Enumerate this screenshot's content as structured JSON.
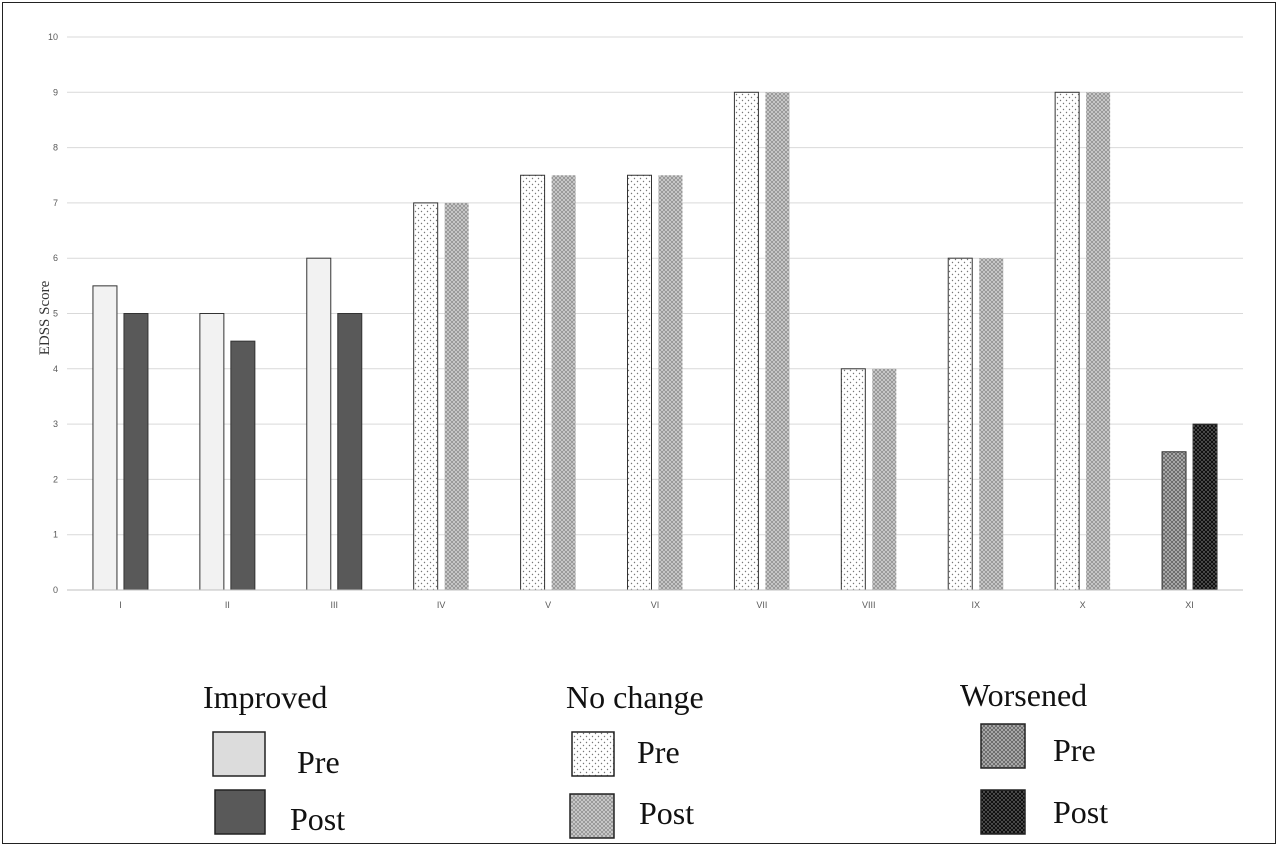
{
  "chart_data": {
    "type": "bar",
    "ylabel": "EDSS Score",
    "xlabel": "",
    "ylim": [
      0,
      10
    ],
    "yticks": [
      0,
      1,
      2,
      3,
      4,
      5,
      6,
      7,
      8,
      9,
      10
    ],
    "grid": true,
    "categories": [
      "I",
      "II",
      "III",
      "IV",
      "V",
      "VI",
      "VII",
      "VIII",
      "IX",
      "X",
      "XI"
    ],
    "series": [
      {
        "name": "Pre",
        "values": [
          5.5,
          5,
          6,
          7,
          7.5,
          7.5,
          9,
          4,
          6,
          9,
          2.5
        ]
      },
      {
        "name": "Post",
        "values": [
          5,
          4.5,
          5,
          7,
          7.5,
          7.5,
          9,
          4,
          6,
          9,
          3
        ]
      }
    ],
    "groups": [
      "Improved",
      "Improved",
      "Improved",
      "No change",
      "No change",
      "No change",
      "No change",
      "No change",
      "No change",
      "No change",
      "Worsened"
    ],
    "legend": {
      "placement": "bottom",
      "groups": [
        {
          "title": "Improved",
          "items": [
            "Pre",
            "Post"
          ]
        },
        {
          "title": "No change",
          "items": [
            "Pre",
            "Post"
          ]
        },
        {
          "title": "Worsened",
          "items": [
            "Pre",
            "Post"
          ]
        }
      ]
    }
  },
  "colors": {
    "improved_pre": "#f2f2f2",
    "improved_post": "#595959",
    "nochange_pre_bg": "#ffffff",
    "nochange_post_bg": "#9a9a9a",
    "worsened_pre_bg": "#7a7a7a",
    "worsened_post_bg": "#1a1a1a",
    "gridline": "#d9d9d9",
    "axis": "#bfbfbf"
  }
}
